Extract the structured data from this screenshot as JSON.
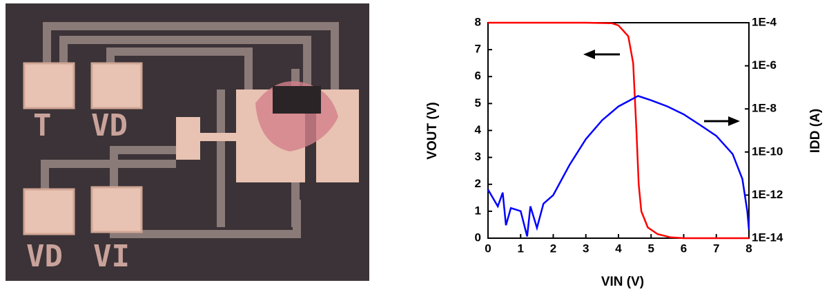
{
  "photo": {
    "labels": [
      "T",
      "VD",
      "VD",
      "VI"
    ]
  },
  "chart_data": {
    "type": "line",
    "xlabel": "VIN (V)",
    "ylabel": "VOUT (V)",
    "y2label": "IDD (A)",
    "xlim": [
      0,
      8
    ],
    "xticks": [
      0,
      1,
      2,
      3,
      4,
      5,
      6,
      7,
      8
    ],
    "ylim": [
      0,
      8
    ],
    "yticks": [
      0,
      1,
      2,
      3,
      4,
      5,
      6,
      7,
      8
    ],
    "y2scale": "log",
    "y2lim": [
      1e-14,
      0.0001
    ],
    "y2ticks": [
      {
        "value": 1e-14,
        "label": "1E-14"
      },
      {
        "value": 1e-12,
        "label": "1E-12"
      },
      {
        "value": 1e-10,
        "label": "1E-10"
      },
      {
        "value": 1e-08,
        "label": "1E-8"
      },
      {
        "value": 1e-06,
        "label": "1E-6"
      },
      {
        "value": 0.0001,
        "label": "1E-4"
      }
    ],
    "series": [
      {
        "color": "#ff0000",
        "x": [
          0,
          1,
          2,
          3,
          3.8,
          4.0,
          4.3,
          4.45,
          4.55,
          4.62,
          4.7,
          4.9,
          5.2,
          5.6,
          6,
          7,
          8
        ],
        "values": [
          8,
          8,
          8,
          8,
          7.98,
          7.9,
          7.5,
          6.5,
          4,
          2,
          1,
          0.4,
          0.15,
          0.03,
          0,
          0,
          0
        ]
      },
      {
        "color": "#0000ff",
        "axis": "y2",
        "x": [
          0,
          0.3,
          0.45,
          0.55,
          0.7,
          1.0,
          1.2,
          1.3,
          1.5,
          1.7,
          2.0,
          2.5,
          3.0,
          3.5,
          4.0,
          4.6,
          5.0,
          5.5,
          6.0,
          6.5,
          7.0,
          7.5,
          7.8,
          7.95,
          8.0
        ],
        "values": [
          1.8e-12,
          3e-13,
          1.3e-12,
          4e-14,
          2.5e-13,
          1.8e-13,
          1.2e-14,
          3e-13,
          3e-14,
          4e-13,
          1e-12,
          2.5e-11,
          4e-10,
          3e-09,
          1.3e-08,
          4e-08,
          2.5e-08,
          1.3e-08,
          5.6e-09,
          1.8e-09,
          5.6e-10,
          8e-11,
          5.6e-12,
          1.8e-13,
          2.5e-14
        ]
      }
    ]
  }
}
